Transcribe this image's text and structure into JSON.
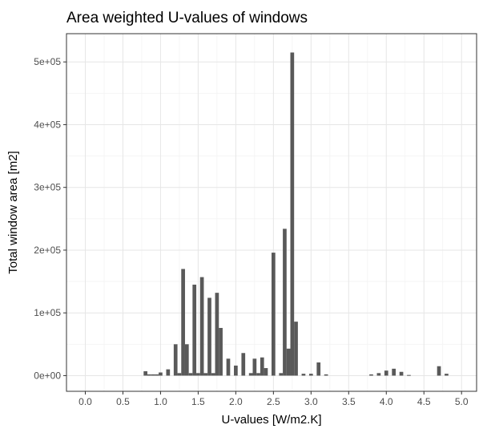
{
  "chart_data": {
    "type": "bar",
    "title": "Area weighted U-values of windows",
    "xlabel": "U-values [W/m2.K]",
    "ylabel": "Total window area [m2]",
    "xlim": [
      -0.25,
      5.2
    ],
    "ylim": [
      -25000,
      545000
    ],
    "x_ticks": [
      0.0,
      0.5,
      1.0,
      1.5,
      2.0,
      2.5,
      3.0,
      3.5,
      4.0,
      4.5,
      5.0
    ],
    "x_tick_labels": [
      "0.0",
      "0.5",
      "1.0",
      "1.5",
      "2.0",
      "2.5",
      "3.0",
      "3.5",
      "4.0",
      "4.5",
      "5.0"
    ],
    "y_ticks": [
      0,
      100000,
      200000,
      300000,
      400000,
      500000
    ],
    "y_tick_labels": [
      "0e+00",
      "1e+05",
      "2e+05",
      "3e+05",
      "4e+05",
      "5e+05"
    ],
    "bar_width": 0.05,
    "grid": true,
    "theme": "bw",
    "colors": {
      "bar": "#595959",
      "grid_major": "#e6e6e6",
      "grid_minor": "#f3f3f3",
      "panel_border": "#333333",
      "text": "#1a1a1a",
      "tick_text": "#4d4d4d"
    },
    "x": [
      0.8,
      0.85,
      0.9,
      0.95,
      1.0,
      1.1,
      1.2,
      1.25,
      1.3,
      1.35,
      1.4,
      1.45,
      1.5,
      1.55,
      1.6,
      1.65,
      1.7,
      1.75,
      1.8,
      1.9,
      2.0,
      2.1,
      2.2,
      2.25,
      2.3,
      2.35,
      2.4,
      2.5,
      2.6,
      2.65,
      2.7,
      2.75,
      2.8,
      2.9,
      3.0,
      3.1,
      3.2,
      3.8,
      3.9,
      4.0,
      4.1,
      4.2,
      4.3,
      4.7,
      4.8
    ],
    "values": [
      7000,
      2000,
      2000,
      2000,
      5000,
      10000,
      50000,
      4000,
      170000,
      50000,
      4000,
      145000,
      4000,
      157000,
      4000,
      124000,
      4000,
      132000,
      76000,
      27000,
      16000,
      36000,
      4000,
      27000,
      4000,
      29000,
      12000,
      196000,
      4000,
      234000,
      43000,
      515000,
      86000,
      3000,
      3000,
      21000,
      2000,
      2000,
      4000,
      8000,
      11000,
      6000,
      1000,
      15000,
      3000
    ]
  }
}
